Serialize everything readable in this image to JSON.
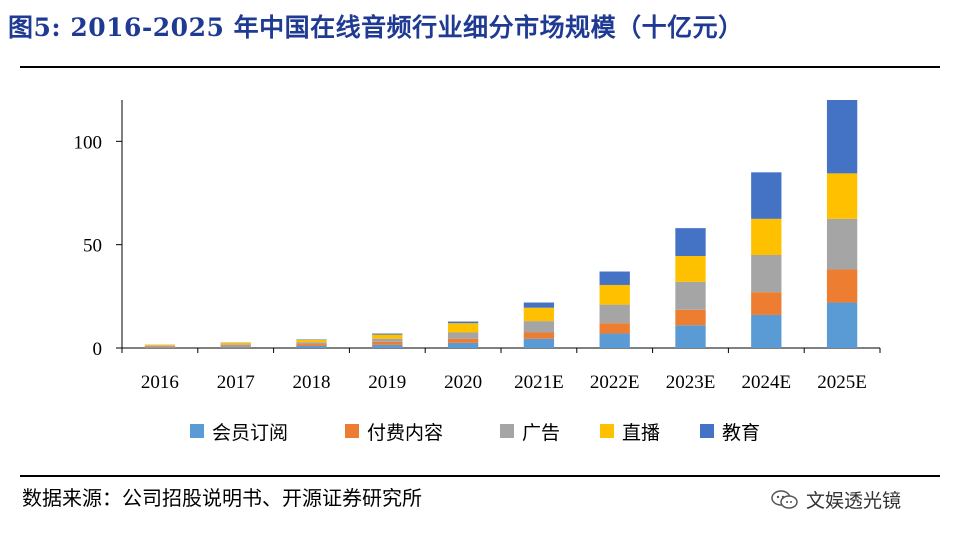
{
  "title": "图5: 2016-2025 年中国在线音频行业细分市场规模（十亿元）",
  "source": "数据来源：公司招股说明书、开源证券研究所",
  "watermark": "文娱透光镜",
  "watermark_icon": "wechat-icon",
  "chart_data": {
    "type": "bar",
    "stacked": true,
    "categories": [
      "2016",
      "2017",
      "2018",
      "2019",
      "2020",
      "2021E",
      "2022E",
      "2023E",
      "2024E",
      "2025E"
    ],
    "series": [
      {
        "name": "会员订阅",
        "color": "#5b9bd5",
        "values": [
          0.3,
          0.6,
          1.0,
          1.5,
          2.5,
          4.5,
          7.0,
          11.0,
          16.0,
          22.0
        ]
      },
      {
        "name": "付费内容",
        "color": "#ed7d31",
        "values": [
          0.4,
          0.6,
          0.9,
          1.5,
          2.0,
          3.0,
          5.0,
          7.5,
          11.0,
          16.0
        ]
      },
      {
        "name": "广告",
        "color": "#a5a5a5",
        "values": [
          0.3,
          0.6,
          0.9,
          1.5,
          3.0,
          5.5,
          9.0,
          13.5,
          18.0,
          24.5
        ]
      },
      {
        "name": "直播",
        "color": "#ffc000",
        "values": [
          0.5,
          0.8,
          1.2,
          2.0,
          4.5,
          6.5,
          9.5,
          12.5,
          17.5,
          22.0
        ]
      },
      {
        "name": "教育",
        "color": "#4472c4",
        "values": [
          0.1,
          0.1,
          0.2,
          0.5,
          0.8,
          2.5,
          6.5,
          13.5,
          22.5,
          35.5
        ]
      }
    ],
    "yticks": [
      0,
      50,
      100
    ],
    "ylim": [
      0,
      120
    ],
    "xlabel": "",
    "ylabel": "",
    "legend": "bottom",
    "grid": false
  }
}
